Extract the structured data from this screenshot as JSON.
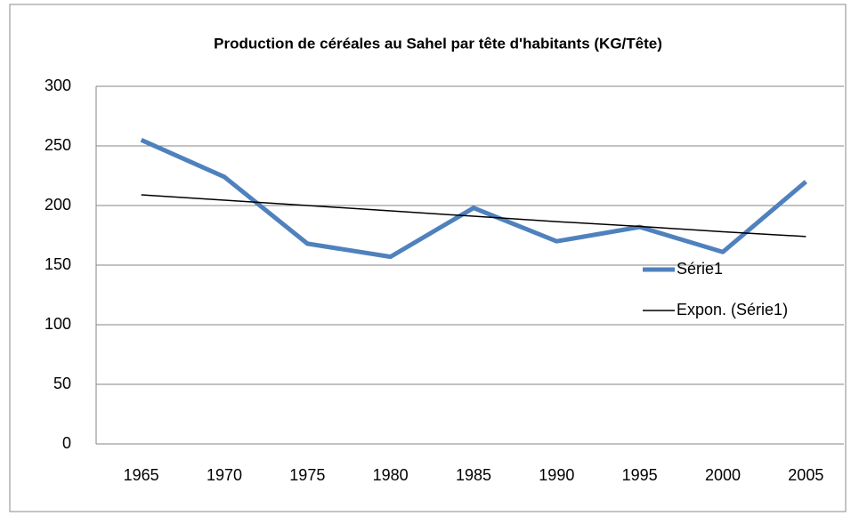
{
  "chart_data": {
    "type": "line",
    "title": "Production de céréales au Sahel par tête d'habitants (KG/Tête)",
    "categories": [
      "1965",
      "1970",
      "1975",
      "1980",
      "1985",
      "1990",
      "1995",
      "2000",
      "2005"
    ],
    "series": [
      {
        "name": "Série1",
        "color": "#4f81bd",
        "values": [
          255,
          224,
          168,
          157,
          198,
          170,
          182,
          161,
          220
        ]
      },
      {
        "name": "Expon. (Série1)",
        "color": "#000000",
        "values": [
          209,
          204.5,
          200,
          195.5,
          191,
          186.5,
          182.5,
          178,
          174
        ]
      }
    ],
    "ylim": [
      0,
      300
    ],
    "yticks": [
      0,
      50,
      100,
      150,
      200,
      250,
      300
    ],
    "grid": true,
    "legend": "right"
  }
}
